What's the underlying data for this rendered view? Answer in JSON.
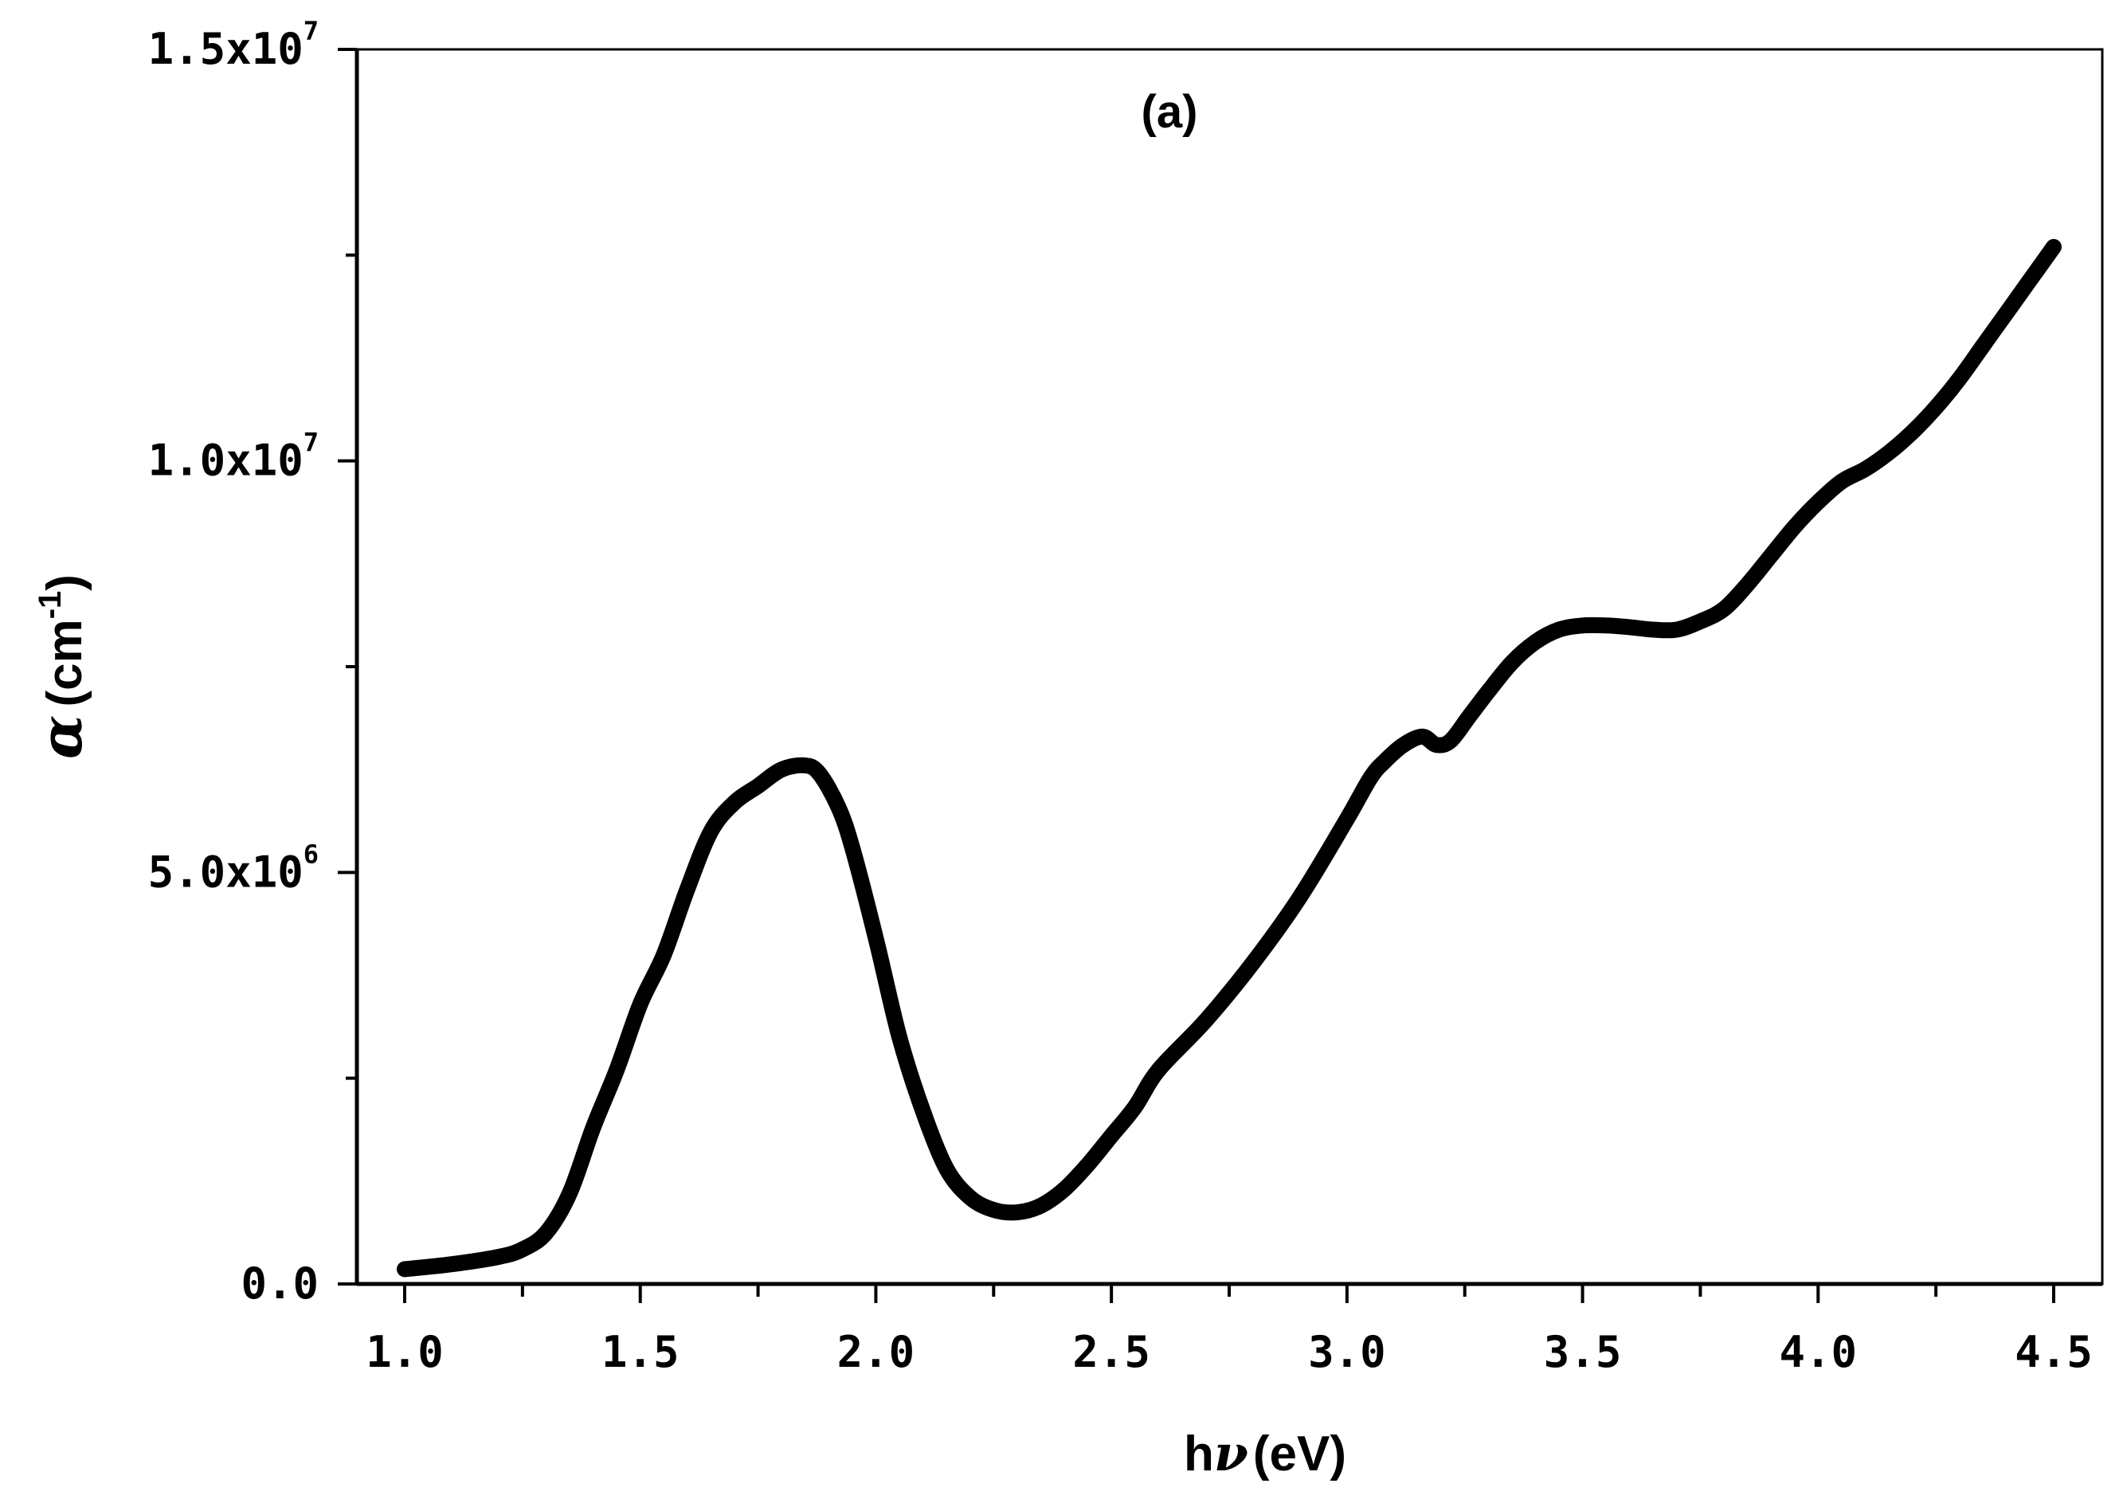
{
  "chart_data": {
    "type": "line",
    "title": "",
    "annotation": "(a)",
    "xlabel": {
      "symbol": "h",
      "greek": "ν",
      "unit": "(eV)"
    },
    "ylabel": {
      "symbol": "α",
      "unit_open": "(cm",
      "unit_sup": "-1",
      "unit_close": ")"
    },
    "xlim": [
      0.9,
      4.5
    ],
    "ylim": [
      0,
      15000000
    ],
    "x_ticks": [
      {
        "label": "1.0",
        "value": 1.0
      },
      {
        "label": "1.5",
        "value": 1.5
      },
      {
        "label": "2.0",
        "value": 2.0
      },
      {
        "label": "2.5",
        "value": 2.5
      },
      {
        "label": "3.0",
        "value": 3.0
      },
      {
        "label": "3.5",
        "value": 3.5
      },
      {
        "label": "4.0",
        "value": 4.0
      },
      {
        "label": "4.5",
        "value": 4.5
      }
    ],
    "y_ticks": [
      {
        "mantissa": "0.0",
        "exp": "",
        "value": 0
      },
      {
        "mantissa": "5.0x10",
        "exp": "6",
        "value": 5000000
      },
      {
        "mantissa": "1.0x10",
        "exp": "7",
        "value": 10000000
      },
      {
        "mantissa": "1.5x10",
        "exp": "7",
        "value": 15000000
      }
    ],
    "series": [
      {
        "name": "alpha",
        "color": "#000000",
        "x": [
          1.0,
          1.1,
          1.2,
          1.25,
          1.3,
          1.35,
          1.4,
          1.45,
          1.5,
          1.55,
          1.6,
          1.65,
          1.7,
          1.75,
          1.8,
          1.85,
          1.88,
          1.92,
          1.95,
          2.0,
          2.05,
          2.1,
          2.15,
          2.2,
          2.25,
          2.3,
          2.35,
          2.4,
          2.45,
          2.5,
          2.55,
          2.6,
          2.7,
          2.8,
          2.9,
          3.0,
          3.05,
          3.08,
          3.12,
          3.16,
          3.19,
          3.22,
          3.26,
          3.3,
          3.35,
          3.4,
          3.45,
          3.5,
          3.55,
          3.6,
          3.65,
          3.7,
          3.75,
          3.8,
          3.85,
          3.9,
          3.95,
          4.0,
          4.05,
          4.1,
          4.15,
          4.2,
          4.25,
          4.3,
          4.35,
          4.4,
          4.45,
          4.5
        ],
        "y": [
          180000,
          240000,
          330000,
          420000,
          620000,
          1100000,
          1900000,
          2600000,
          3400000,
          4000000,
          4800000,
          5500000,
          5850000,
          6050000,
          6250000,
          6300000,
          6200000,
          5800000,
          5300000,
          4200000,
          3000000,
          2100000,
          1400000,
          1050000,
          900000,
          870000,
          950000,
          1150000,
          1450000,
          1800000,
          2150000,
          2600000,
          3200000,
          3900000,
          4700000,
          5650000,
          6150000,
          6350000,
          6550000,
          6650000,
          6550000,
          6600000,
          6900000,
          7200000,
          7550000,
          7800000,
          7950000,
          8000000,
          8000000,
          7980000,
          7950000,
          7950000,
          8050000,
          8200000,
          8500000,
          8850000,
          9200000,
          9500000,
          9750000,
          9900000,
          10100000,
          10350000,
          10650000,
          11000000,
          11400000,
          11800000,
          12200000,
          12600000
        ]
      }
    ]
  }
}
